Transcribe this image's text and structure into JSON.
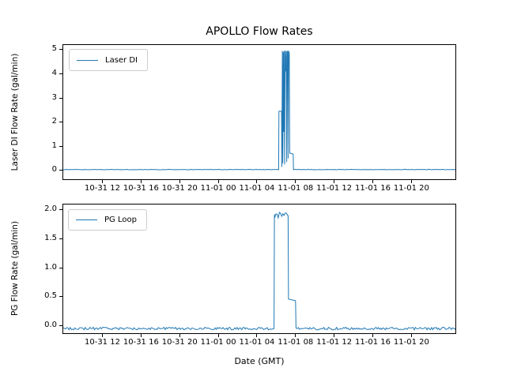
{
  "figure": {
    "title": "APOLLO Flow Rates",
    "background": "#ffffff",
    "line_color": "#1f77b4"
  },
  "chart_data": [
    {
      "type": "line",
      "title": "APOLLO Flow Rates",
      "ylabel": "Laser DI Flow Rate (gal/min)",
      "xlabel": "",
      "legend_position": "upper left",
      "grid": false,
      "x_unit": "hours from left edge of axis; tick labels are GMT dates (MM-DD HH)",
      "xlim": [
        0,
        40.6
      ],
      "ylim": [
        -0.36,
        5.19
      ],
      "yticks": [
        {
          "pos": 0,
          "label": "0"
        },
        {
          "pos": 1,
          "label": "1"
        },
        {
          "pos": 2,
          "label": "2"
        },
        {
          "pos": 3,
          "label": "3"
        },
        {
          "pos": 4,
          "label": "4"
        },
        {
          "pos": 5,
          "label": "5"
        }
      ],
      "xticks": [
        {
          "pos": 4.05,
          "label": "10-31 12"
        },
        {
          "pos": 8.05,
          "label": "10-31 16"
        },
        {
          "pos": 12.05,
          "label": "10-31 20"
        },
        {
          "pos": 16.05,
          "label": "11-01 00"
        },
        {
          "pos": 20.05,
          "label": "11-01 04"
        },
        {
          "pos": 24.05,
          "label": "11-01 08"
        },
        {
          "pos": 28.05,
          "label": "11-01 12"
        },
        {
          "pos": 32.05,
          "label": "11-01 16"
        },
        {
          "pos": 36.05,
          "label": "11-01 20"
        }
      ],
      "series": [
        {
          "name": "Laser DI",
          "color": "#1f77b4",
          "points_format": "[x_hours, gal_per_min, optional_noise_amplitude_until_next_point]",
          "points": [
            [
              0,
              0.04,
              0.01
            ],
            [
              22.3,
              0.04
            ],
            [
              22.33,
              2.45
            ],
            [
              22.6,
              2.45
            ],
            [
              22.63,
              0.15
            ],
            [
              22.68,
              4.95
            ],
            [
              22.73,
              0.3
            ],
            [
              22.78,
              4.9
            ],
            [
              22.82,
              1.6
            ],
            [
              22.86,
              4.95
            ],
            [
              22.92,
              0.25
            ],
            [
              22.97,
              4.95
            ],
            [
              23.03,
              4.1
            ],
            [
              23.08,
              4.95
            ],
            [
              23.13,
              0.35
            ],
            [
              23.18,
              4.9
            ],
            [
              23.24,
              4.95
            ],
            [
              23.28,
              0.5
            ],
            [
              23.33,
              4.95
            ],
            [
              23.4,
              4.85
            ],
            [
              23.45,
              0.72
            ],
            [
              23.8,
              0.68
            ],
            [
              23.84,
              0.04,
              0.01
            ],
            [
              40.6,
              0.04
            ]
          ]
        }
      ]
    },
    {
      "type": "line",
      "title": "",
      "ylabel": "PG Flow Rate (gal/min)",
      "xlabel": "Date (GMT)",
      "legend_position": "upper left",
      "grid": false,
      "x_unit": "hours from left edge of axis; tick labels are GMT dates (MM-DD HH)",
      "xlim": [
        0,
        40.6
      ],
      "ylim": [
        -0.13,
        2.09
      ],
      "yticks": [
        {
          "pos": 0.0,
          "label": "0.0"
        },
        {
          "pos": 0.5,
          "label": "0.5"
        },
        {
          "pos": 1.0,
          "label": "1.0"
        },
        {
          "pos": 1.5,
          "label": "1.5"
        },
        {
          "pos": 2.0,
          "label": "2.0"
        }
      ],
      "xticks": [
        {
          "pos": 4.05,
          "label": "10-31 12"
        },
        {
          "pos": 8.05,
          "label": "10-31 16"
        },
        {
          "pos": 12.05,
          "label": "10-31 20"
        },
        {
          "pos": 16.05,
          "label": "11-01 00"
        },
        {
          "pos": 20.05,
          "label": "11-01 04"
        },
        {
          "pos": 24.05,
          "label": "11-01 08"
        },
        {
          "pos": 28.05,
          "label": "11-01 12"
        },
        {
          "pos": 32.05,
          "label": "11-01 16"
        },
        {
          "pos": 36.05,
          "label": "11-01 20"
        }
      ],
      "series": [
        {
          "name": "PG Loop",
          "color": "#1f77b4",
          "points_format": "[x_hours, gal_per_min, optional_noise_amplitude_until_next_point]",
          "points": [
            [
              0,
              -0.05,
              0.022
            ],
            [
              21.82,
              -0.05
            ],
            [
              21.86,
              1.92
            ],
            [
              21.9,
              1.9,
              0.06
            ],
            [
              23.28,
              1.9
            ],
            [
              23.32,
              0.46
            ],
            [
              24.05,
              0.43
            ],
            [
              24.1,
              -0.05,
              0.022
            ],
            [
              40.6,
              -0.05
            ]
          ]
        }
      ]
    }
  ]
}
